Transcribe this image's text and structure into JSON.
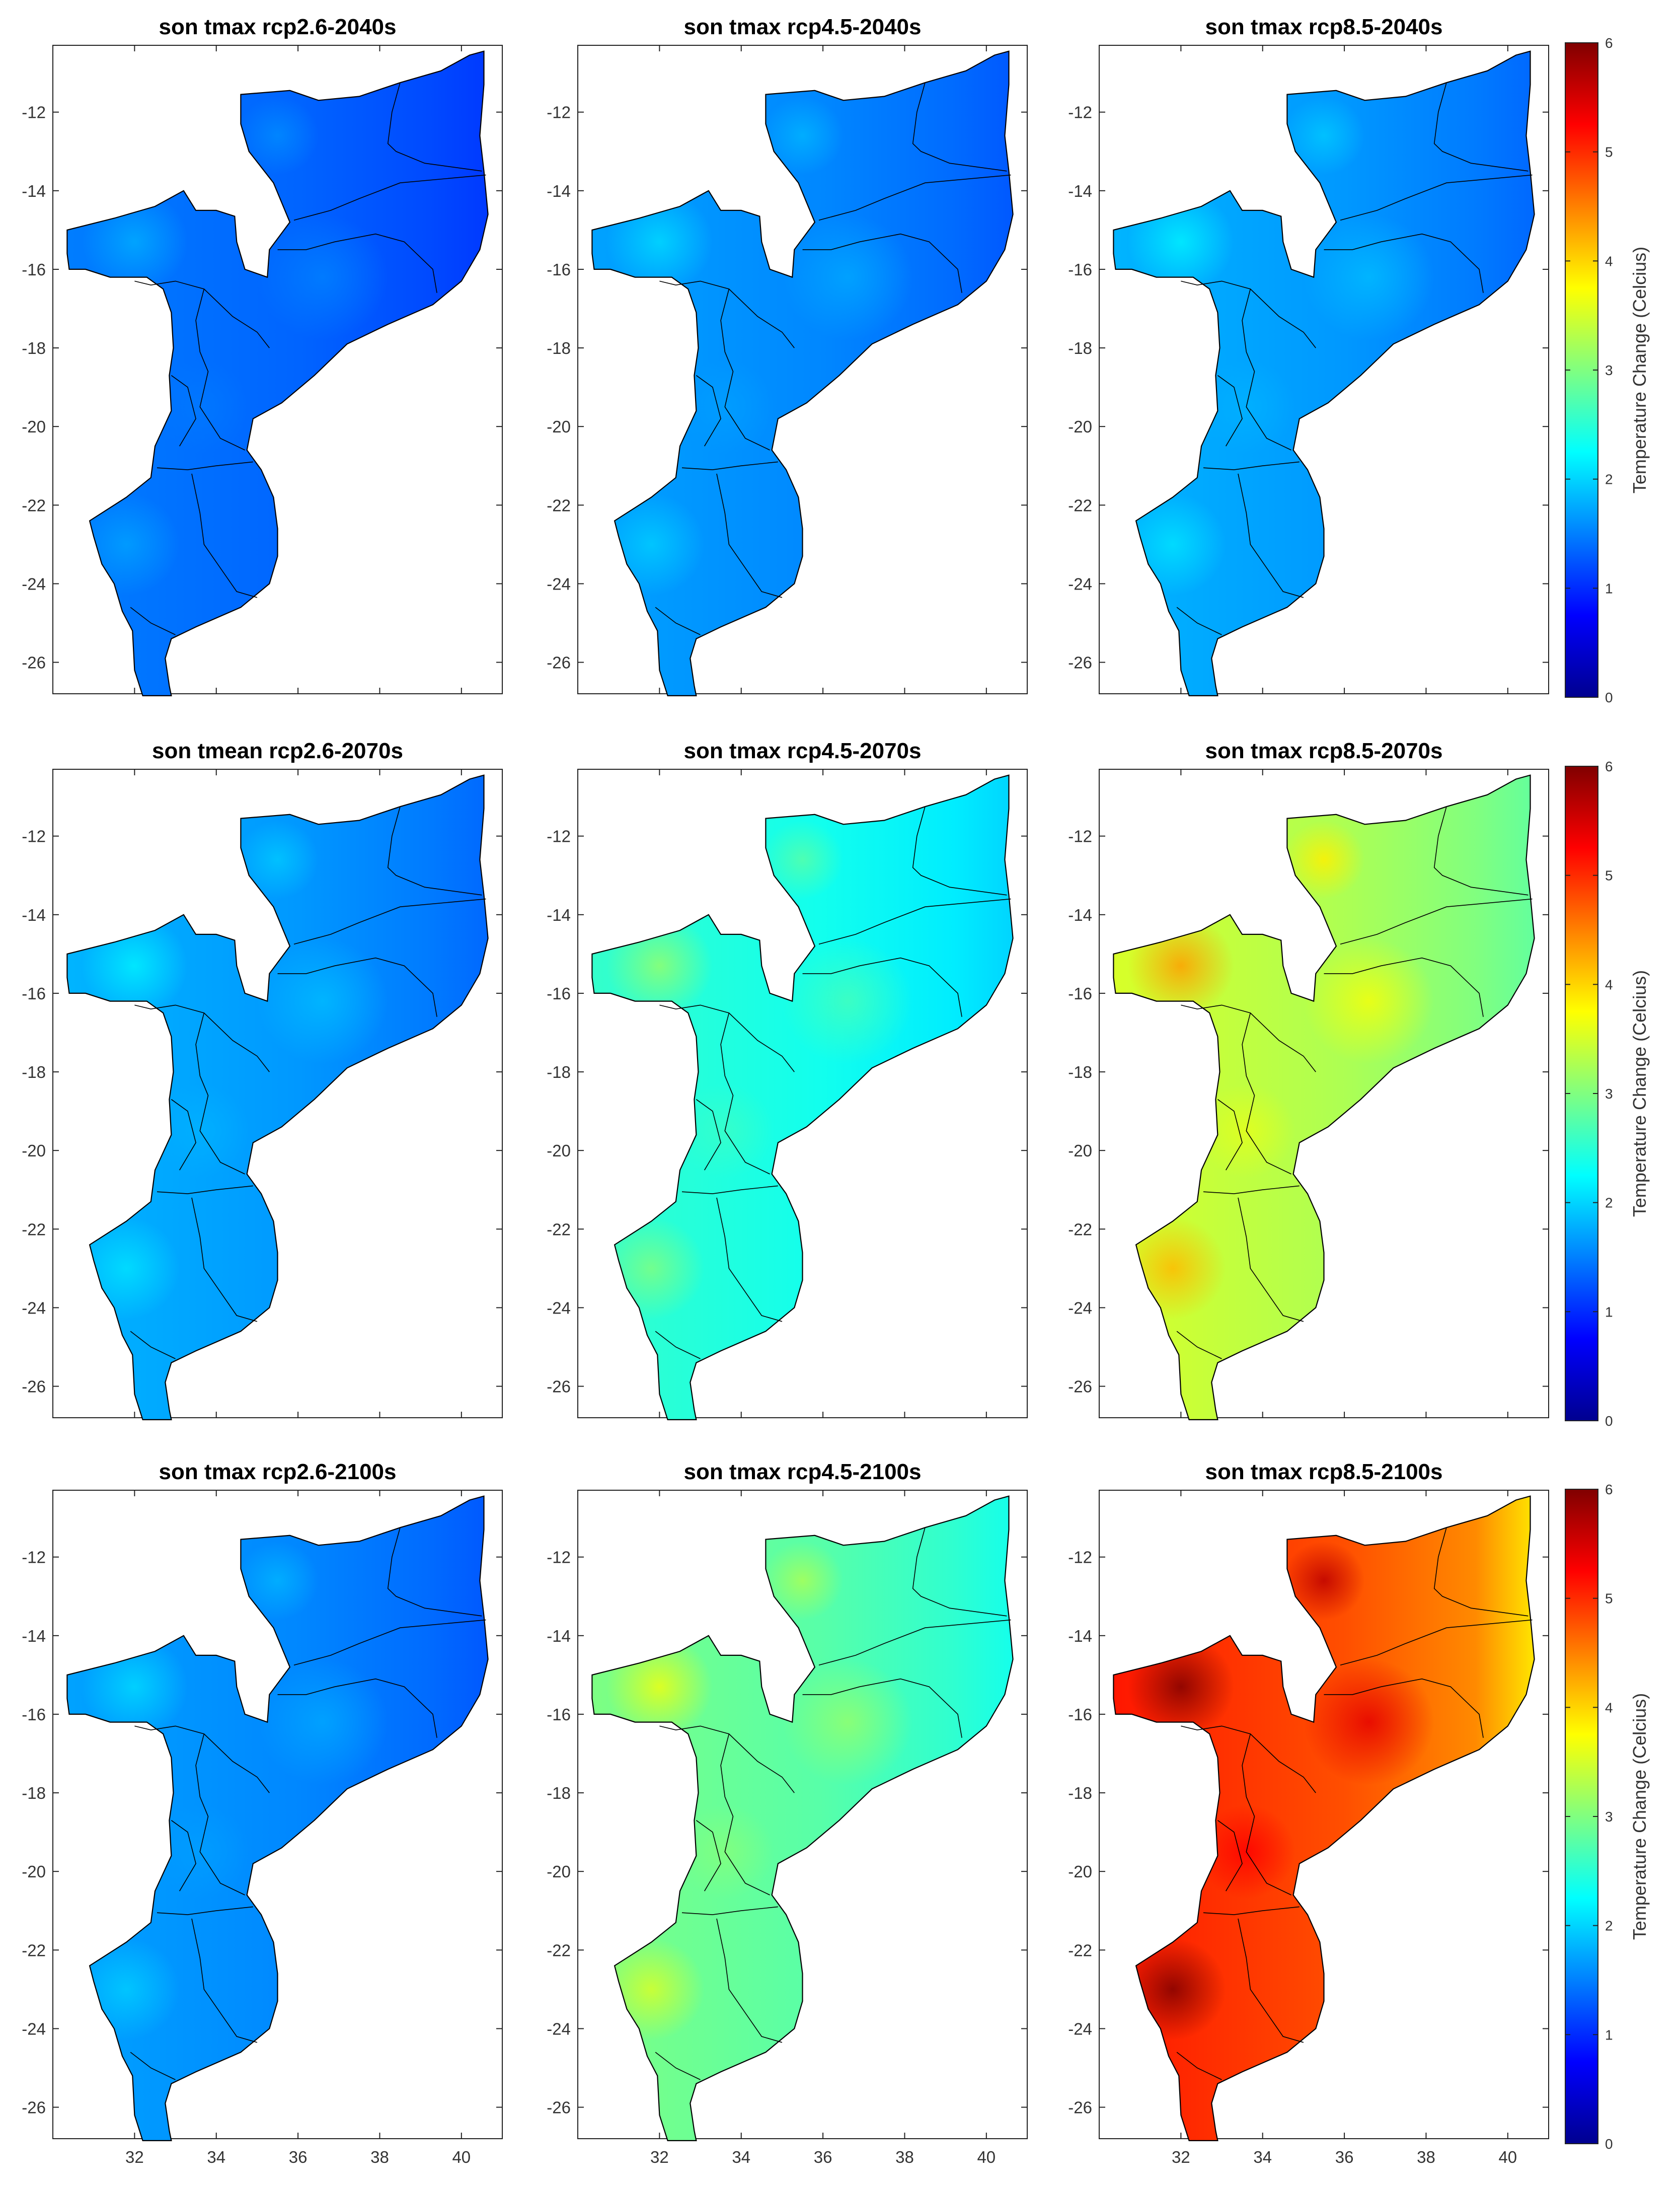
{
  "figure": {
    "colormap": [
      "#00008f",
      "#0000ff",
      "#0080ff",
      "#00ffff",
      "#80ff80",
      "#ffff00",
      "#ff8000",
      "#ff0000",
      "#800000"
    ],
    "colorbar": {
      "label": "Temperature Change (Celcius)",
      "ticks": [
        "0",
        "1",
        "2",
        "3",
        "4",
        "5",
        "6"
      ],
      "range": [
        0,
        6
      ]
    },
    "axes": {
      "lat_ticks": [
        "-12",
        "-14",
        "-16",
        "-18",
        "-20",
        "-22",
        "-24",
        "-26"
      ],
      "lon_ticks": [
        "32",
        "34",
        "36",
        "38",
        "40"
      ],
      "lat_range": [
        -26.8,
        -10.3
      ],
      "lon_range": [
        30.0,
        41.0
      ]
    },
    "outline_color": "#000000"
  },
  "chart_data": [
    {
      "type": "heatmap",
      "title": "son tmax rcp2.6-2040s",
      "mean_change_celsius": 1.3
    },
    {
      "type": "heatmap",
      "title": "son tmax rcp4.5-2040s",
      "mean_change_celsius": 1.5
    },
    {
      "type": "heatmap",
      "title": "son tmax rcp8.5-2040s",
      "mean_change_celsius": 1.6
    },
    {
      "type": "heatmap",
      "title": "son tmean rcp2.6-2070s",
      "mean_change_celsius": 1.6
    },
    {
      "type": "heatmap",
      "title": "son tmax rcp4.5-2070s",
      "mean_change_celsius": 2.3
    },
    {
      "type": "heatmap",
      "title": "son tmax rcp8.5-2070s",
      "mean_change_celsius": 3.2
    },
    {
      "type": "heatmap",
      "title": "son tmax rcp2.6-2100s",
      "mean_change_celsius": 1.5
    },
    {
      "type": "heatmap",
      "title": "son tmax rcp4.5-2100s",
      "mean_change_celsius": 2.7
    },
    {
      "type": "heatmap",
      "title": "son tmax rcp8.5-2100s",
      "mean_change_celsius": 4.7
    }
  ]
}
